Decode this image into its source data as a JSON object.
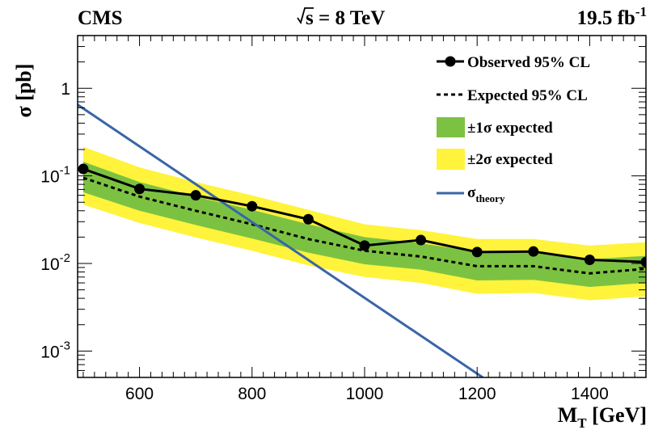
{
  "chart_data": {
    "type": "line",
    "header": {
      "experiment": "CMS",
      "energy_sqrt": "s",
      "energy_rest": " = 8 TeV",
      "lumi_value": "19.5 fb",
      "lumi_exp": "-1"
    },
    "xlabel": {
      "main": "M",
      "sub": "T",
      "rest": " [GeV]"
    },
    "ylabel": "σ [pb]",
    "xlim": [
      490,
      1500
    ],
    "ylim": [
      0.0005,
      4
    ],
    "yscale": "log",
    "x_ticks": [
      {
        "value": 600,
        "label": "600"
      },
      {
        "value": 800,
        "label": "800"
      },
      {
        "value": 1000,
        "label": "1000"
      },
      {
        "value": 1200,
        "label": "1200"
      },
      {
        "value": 1400,
        "label": "1400"
      }
    ],
    "y_ticks": [
      {
        "value": 0.001,
        "base": "10",
        "exp": "-3"
      },
      {
        "value": 0.01,
        "base": "10",
        "exp": "-2"
      },
      {
        "value": 0.1,
        "base": "10",
        "exp": "-1"
      },
      {
        "value": 1,
        "base": "1",
        "exp": ""
      }
    ],
    "grid": false,
    "legend_position": "top-right",
    "series": [
      {
        "name": "Observed 95% CL",
        "style": "solid-markers",
        "color": "#000000",
        "x": [
          500,
          600,
          700,
          800,
          900,
          1000,
          1100,
          1200,
          1300,
          1400,
          1500
        ],
        "y": [
          0.12,
          0.071,
          0.06,
          0.045,
          0.032,
          0.016,
          0.0185,
          0.0135,
          0.0137,
          0.011,
          0.0104
        ]
      },
      {
        "name": "Expected 95% CL",
        "style": "dashed",
        "color": "#000000",
        "x": [
          500,
          600,
          700,
          800,
          900,
          1000,
          1100,
          1200,
          1300,
          1400,
          1500
        ],
        "y": [
          0.095,
          0.058,
          0.04,
          0.028,
          0.019,
          0.014,
          0.012,
          0.0093,
          0.0093,
          0.0077,
          0.0087
        ]
      },
      {
        "name": "±1σ expected",
        "style": "band",
        "color": "#7cc242",
        "x": [
          500,
          600,
          700,
          800,
          900,
          1000,
          1100,
          1200,
          1300,
          1400,
          1500
        ],
        "upper": [
          0.145,
          0.085,
          0.058,
          0.041,
          0.028,
          0.02,
          0.017,
          0.0135,
          0.0135,
          0.0112,
          0.0122
        ],
        "lower": [
          0.065,
          0.04,
          0.0275,
          0.0193,
          0.0133,
          0.0098,
          0.0085,
          0.0064,
          0.0065,
          0.0054,
          0.006
        ]
      },
      {
        "name": "±2σ expected",
        "style": "band",
        "color": "#fff33b",
        "x": [
          500,
          600,
          700,
          800,
          900,
          1000,
          1100,
          1200,
          1300,
          1400,
          1500
        ],
        "upper": [
          0.215,
          0.125,
          0.085,
          0.06,
          0.041,
          0.028,
          0.024,
          0.019,
          0.019,
          0.016,
          0.0175
        ],
        "lower": [
          0.047,
          0.029,
          0.0198,
          0.014,
          0.0095,
          0.007,
          0.006,
          0.0045,
          0.0046,
          0.0038,
          0.0042
        ]
      },
      {
        "name_main": "σ",
        "name_sub": "theory",
        "style": "solid",
        "color": "#3a65a8",
        "x": [
          490,
          1210
        ],
        "y": [
          0.65,
          0.0005
        ]
      }
    ]
  }
}
